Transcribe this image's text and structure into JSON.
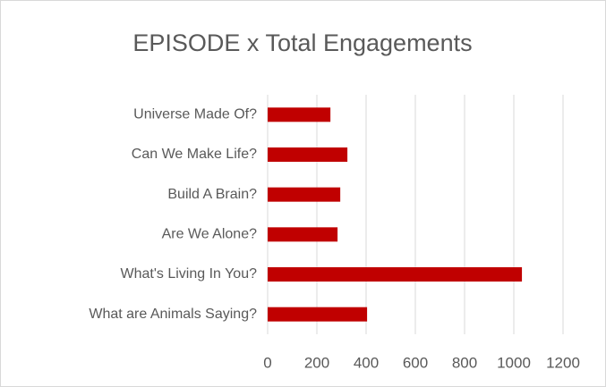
{
  "chart_data": {
    "type": "bar",
    "orientation": "horizontal",
    "title": "EPISODE x Total Engagements",
    "categories": [
      "Universe Made Of?",
      "Can We Make Life?",
      "Build A Brain?",
      "Are We Alone?",
      "What's Living In You?",
      "What are Animals Saying?"
    ],
    "values": [
      255,
      324,
      295,
      284,
      1033,
      404
    ],
    "color": "#c00000",
    "xlim": [
      0,
      1200
    ],
    "xticks": [
      0,
      200,
      400,
      600,
      800,
      1000,
      1200
    ],
    "grid": true
  }
}
